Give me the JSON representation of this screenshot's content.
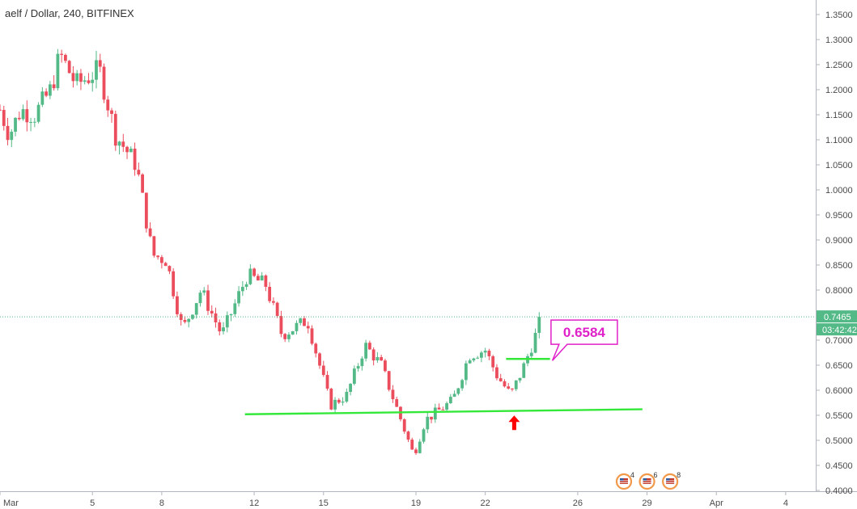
{
  "chart_data": {
    "type": "candlestick",
    "title": "aelf / Dollar, 240, BITFINEX",
    "ylim": [
      0.4,
      1.35
    ],
    "y_ticks": [
      "1.3500",
      "1.3000",
      "1.2500",
      "1.2000",
      "1.1500",
      "1.1000",
      "1.0500",
      "1.0000",
      "0.9500",
      "0.9000",
      "0.8500",
      "0.8000",
      "0.7500",
      "0.7000",
      "0.6500",
      "0.6000",
      "0.5500",
      "0.5000",
      "0.4500",
      "0.4000"
    ],
    "x_ticks": [
      {
        "label": "Mar",
        "day": 1
      },
      {
        "label": "5",
        "day": 5
      },
      {
        "label": "8",
        "day": 8
      },
      {
        "label": "12",
        "day": 12
      },
      {
        "label": "15",
        "day": 15
      },
      {
        "label": "19",
        "day": 19
      },
      {
        "label": "22",
        "day": 22
      },
      {
        "label": "26",
        "day": 26
      },
      {
        "label": "29",
        "day": 29
      },
      {
        "label": "Apr",
        "day": 32
      },
      {
        "label": "4",
        "day": 35
      }
    ],
    "x_range_days": [
      1,
      36.3
    ],
    "current_price": "0.7465",
    "countdown": "03:42:42",
    "anchors": [
      {
        "day": 1.0,
        "price": 1.16
      },
      {
        "day": 1.4,
        "price": 1.11
      },
      {
        "day": 1.9,
        "price": 1.16
      },
      {
        "day": 2.5,
        "price": 1.15
      },
      {
        "day": 3.2,
        "price": 1.2
      },
      {
        "day": 3.6,
        "price": 1.27
      },
      {
        "day": 4.3,
        "price": 1.21
      },
      {
        "day": 5.3,
        "price": 1.24
      },
      {
        "day": 6.0,
        "price": 1.11
      },
      {
        "day": 6.9,
        "price": 1.05
      },
      {
        "day": 7.6,
        "price": 0.87
      },
      {
        "day": 8.2,
        "price": 0.86
      },
      {
        "day": 8.9,
        "price": 0.72
      },
      {
        "day": 9.7,
        "price": 0.8
      },
      {
        "day": 10.6,
        "price": 0.71
      },
      {
        "day": 11.7,
        "price": 0.83
      },
      {
        "day": 12.5,
        "price": 0.81
      },
      {
        "day": 13.2,
        "price": 0.71
      },
      {
        "day": 14.3,
        "price": 0.74
      },
      {
        "day": 15.3,
        "price": 0.57
      },
      {
        "day": 16.0,
        "price": 0.59
      },
      {
        "day": 16.8,
        "price": 0.69
      },
      {
        "day": 17.5,
        "price": 0.65
      },
      {
        "day": 18.2,
        "price": 0.56
      },
      {
        "day": 18.9,
        "price": 0.47
      },
      {
        "day": 19.4,
        "price": 0.54
      },
      {
        "day": 20.0,
        "price": 0.56
      },
      {
        "day": 20.6,
        "price": 0.58
      },
      {
        "day": 21.3,
        "price": 0.67
      },
      {
        "day": 22.0,
        "price": 0.68
      },
      {
        "day": 22.5,
        "price": 0.63
      },
      {
        "day": 23.1,
        "price": 0.59
      },
      {
        "day": 23.6,
        "price": 0.64
      },
      {
        "day": 24.1,
        "price": 0.7
      },
      {
        "day": 24.45,
        "price": 0.7465
      }
    ],
    "annotations": {
      "support_line": {
        "from": {
          "day": 11.6,
          "price": 0.552
        },
        "to": {
          "day": 28.8,
          "price": 0.562
        },
        "color": "#34e83a"
      },
      "short_line": {
        "from": {
          "day": 22.9,
          "price": 0.6625
        },
        "to": {
          "day": 24.8,
          "price": 0.6625
        },
        "color": "#34e83a"
      },
      "callout": {
        "text": "0.6584",
        "day": 24.95,
        "price": 0.695,
        "color": "#e020c8"
      },
      "arrow": {
        "day": 23.25,
        "price": 0.535,
        "color": "#ff0000"
      }
    },
    "event_badges": [
      {
        "count": "4",
        "day": 28.0
      },
      {
        "count": "6",
        "day": 29.0
      },
      {
        "count": "8",
        "day": 30.0
      }
    ],
    "colors": {
      "up": "#53b987",
      "down": "#eb4d5c",
      "price_line": "#53b987",
      "axis_line": "#b2b5be"
    },
    "grid": false
  }
}
